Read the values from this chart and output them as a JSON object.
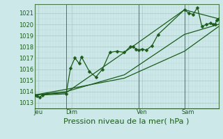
{
  "bg_color": "#cce8e8",
  "grid_color_major": "#a8c8c8",
  "grid_color_minor": "#bcd8d8",
  "line_color": "#1a5c1a",
  "xlabel": "Pression niveau de la mer( hPa )",
  "ylim": [
    1012.5,
    1021.8
  ],
  "yticks": [
    1013,
    1014,
    1015,
    1016,
    1017,
    1018,
    1019,
    1020,
    1021
  ],
  "xlim": [
    0,
    4.2
  ],
  "day_positions": [
    0.08,
    0.85,
    2.45,
    3.5
  ],
  "day_labels": [
    "Jeu",
    "Dim",
    "Ven",
    "Sam"
  ],
  "vline_positions": [
    0.72,
    2.38,
    3.42
  ],
  "series1_x": [
    0.0,
    0.05,
    0.12,
    0.18,
    0.72,
    0.82,
    0.92,
    1.02,
    1.07,
    1.25,
    1.4,
    1.55,
    1.72,
    1.88,
    2.05,
    2.18,
    2.25,
    2.32,
    2.38,
    2.45,
    2.55,
    2.68,
    2.82,
    3.42,
    3.52,
    3.62,
    3.72,
    3.82,
    3.92,
    4.02,
    4.08,
    4.12,
    4.16,
    4.2
  ],
  "series1_y": [
    1013.7,
    1013.6,
    1013.5,
    1013.7,
    1013.8,
    1016.1,
    1017.0,
    1016.5,
    1017.1,
    1015.8,
    1015.3,
    1016.0,
    1017.5,
    1017.6,
    1017.5,
    1018.0,
    1018.0,
    1017.8,
    1017.7,
    1017.8,
    1017.7,
    1018.1,
    1019.1,
    1021.3,
    1021.0,
    1020.9,
    1021.5,
    1019.8,
    1020.0,
    1020.1,
    1020.0,
    1020.0,
    1020.4,
    1020.5
  ],
  "series2_x": [
    0.0,
    0.72,
    2.05,
    3.42,
    4.2
  ],
  "series2_y": [
    1013.7,
    1013.9,
    1017.5,
    1021.3,
    1020.5
  ],
  "series3_x": [
    0.0,
    0.72,
    2.05,
    3.42,
    4.2
  ],
  "series3_y": [
    1013.7,
    1014.0,
    1015.5,
    1019.1,
    1020.0
  ],
  "series4_x": [
    0.0,
    0.72,
    2.05,
    3.42,
    4.2
  ],
  "series4_y": [
    1013.7,
    1014.2,
    1015.2,
    1017.6,
    1019.8
  ],
  "marker": "D",
  "markersize": 2.5,
  "linewidth": 0.9,
  "ylabel_fontsize": 7,
  "xlabel_fontsize": 8,
  "tick_fontsize": 6
}
